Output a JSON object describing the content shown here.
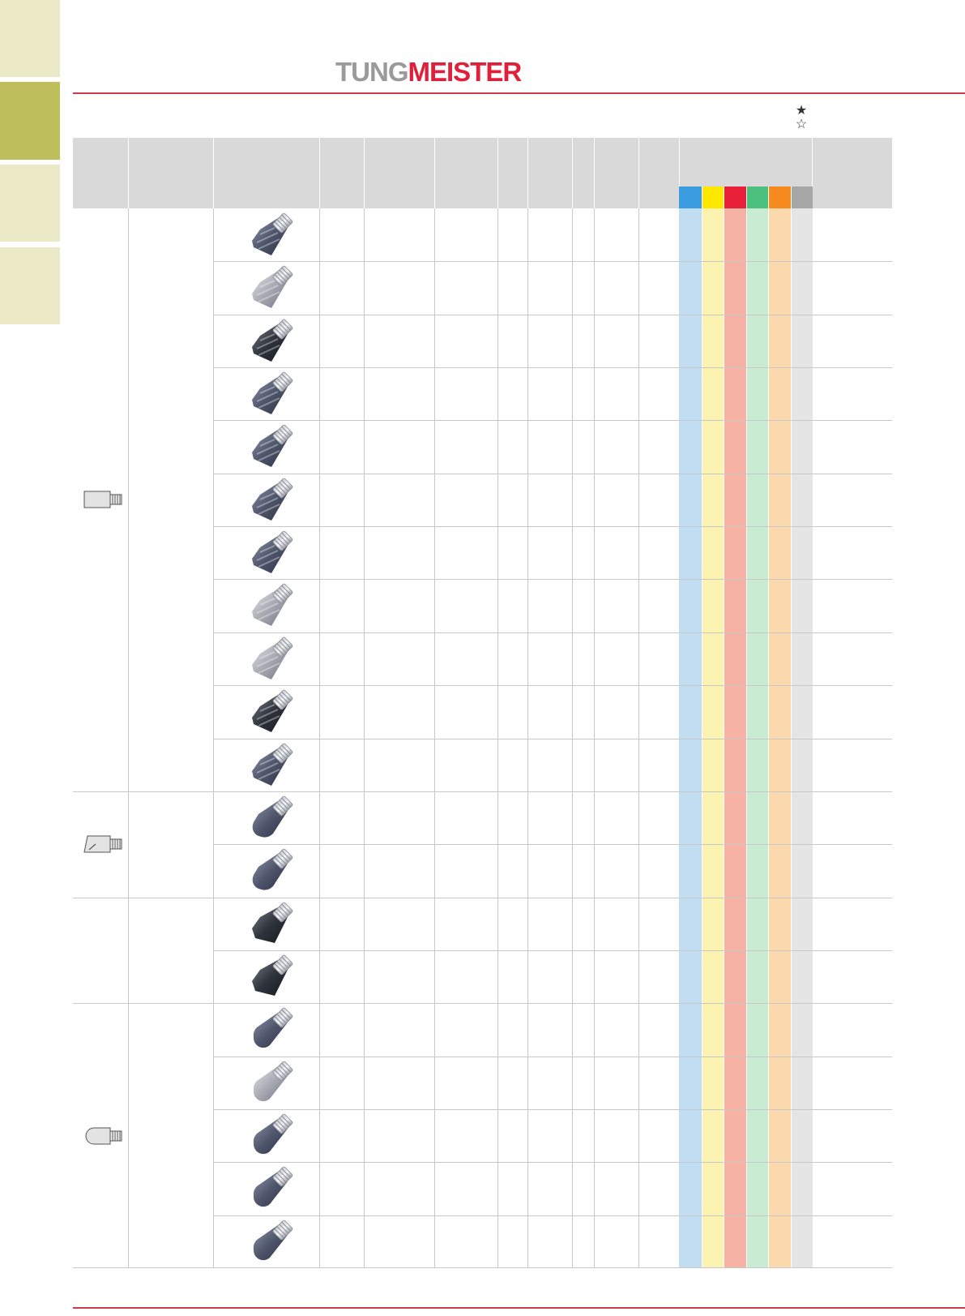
{
  "brand": {
    "logo_part1": "TUNG",
    "logo_part2": "MEISTER"
  },
  "legend": {
    "filled_star": "★",
    "hollow_star": "☆"
  },
  "material_colors": [
    "#3b9de0",
    "#ffe800",
    "#e8203a",
    "#4cc17e",
    "#f68a1f",
    "#a6a6a6"
  ],
  "material_tints": [
    "#c2dcf2",
    "#fdf3b0",
    "#f6b3a5",
    "#c8ebd2",
    "#fbd9ac",
    "#e5e5e5"
  ],
  "groups": [
    {
      "icon": "square-end-head-icon",
      "rows": 11
    },
    {
      "icon": "corner-radius-head-icon",
      "rows": 2
    },
    {
      "icon": "chamfer-head-icon",
      "rows": 2
    },
    {
      "icon": "ball-nose-head-icon",
      "rows": 5
    }
  ],
  "tools": [
    "dark-4-flute-endmill-head",
    "light-2-flute-endmill-head",
    "black-4-flute-endmill-head",
    "dark-3-flute-endmill-head",
    "dark-2-flute-endmill-head",
    "dark-multi-flute-endmill-head",
    "dark-4-flute-endmill-head",
    "silver-2-flute-endmill-head",
    "silver-4-flute-endmill-head",
    "black-multi-flute-endmill-head",
    "dark-multi-flute-endmill-head",
    "dark-corner-radius-head",
    "dark-corner-radius-head",
    "black-chamfer-head",
    "black-chamfer-head",
    "dark-ball-nose-head",
    "light-ball-nose-head",
    "dark-ball-nose-head",
    "dark-ball-nose-head",
    "dark-ball-nose-head"
  ]
}
